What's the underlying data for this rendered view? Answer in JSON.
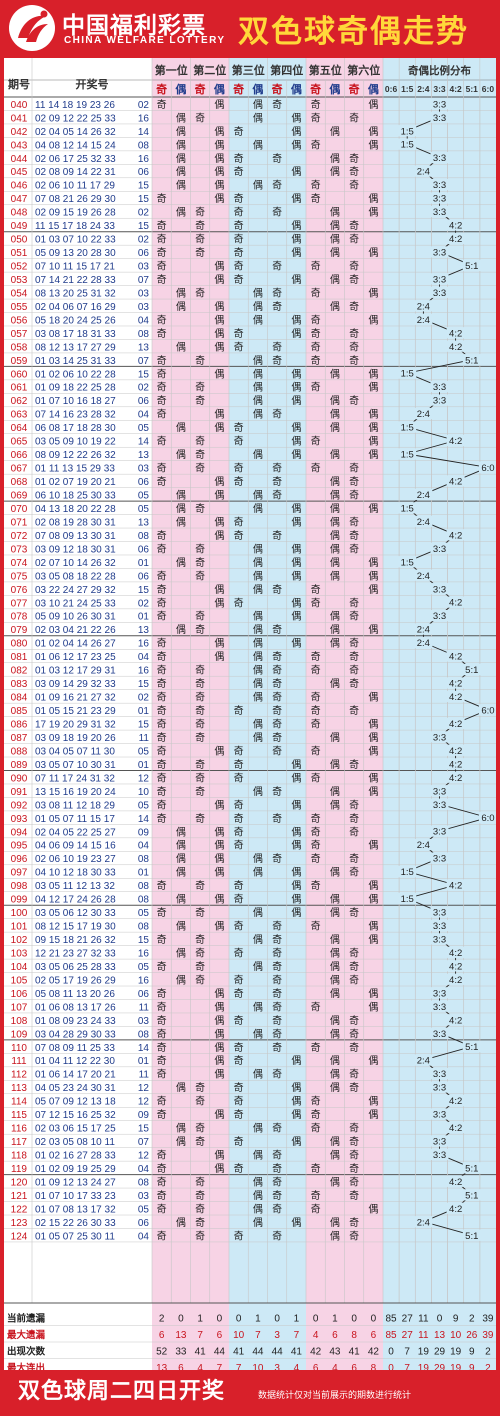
{
  "brand": {
    "name_cn": "中国福利彩票",
    "name_en": "CHINA WELFARE LOTTERY"
  },
  "title": "双色球奇偶走势",
  "headers": {
    "period": "期号",
    "numbers": "开奖号",
    "positions": [
      "第一位",
      "第二位",
      "第三位",
      "第四位",
      "第五位",
      "第六位"
    ],
    "odd": "奇",
    "even": "偶",
    "ratio_group": "奇偶比例分布",
    "ratios": [
      "0:6",
      "1:5",
      "2:4",
      "3:3",
      "4:2",
      "5:1",
      "6:0"
    ]
  },
  "rows": [
    {
      "p": "040",
      "r": "11 14 18 19 23 26",
      "b": "02"
    },
    {
      "p": "041",
      "r": "02 09 12 22 25 33",
      "b": "16"
    },
    {
      "p": "042",
      "r": "02 04 05 14 26 32",
      "b": "14"
    },
    {
      "p": "043",
      "r": "04 08 12 14 15 24",
      "b": "08"
    },
    {
      "p": "044",
      "r": "02 06 17 25 32 33",
      "b": "16"
    },
    {
      "p": "045",
      "r": "02 08 09 14 22 31",
      "b": "06"
    },
    {
      "p": "046",
      "r": "02 06 10 11 17 29",
      "b": "15"
    },
    {
      "p": "047",
      "r": "07 08 21 26 29 30",
      "b": "15"
    },
    {
      "p": "048",
      "r": "02 09 15 19 26 28",
      "b": "02"
    },
    {
      "p": "049",
      "r": "11 15 17 18 24 33",
      "b": "15"
    },
    {
      "p": "050",
      "r": "01 03 07 10 22 33",
      "b": "02"
    },
    {
      "p": "051",
      "r": "05 09 13 20 28 30",
      "b": "06"
    },
    {
      "p": "052",
      "r": "07 10 11 15 17 21",
      "b": "03"
    },
    {
      "p": "053",
      "r": "07 14 21 22 28 33",
      "b": "07"
    },
    {
      "p": "054",
      "r": "08 13 20 25 31 32",
      "b": "03"
    },
    {
      "p": "055",
      "r": "02 04 06 07 16 29",
      "b": "03"
    },
    {
      "p": "056",
      "r": "05 18 20 24 25 26",
      "b": "04"
    },
    {
      "p": "057",
      "r": "03 08 17 18 31 33",
      "b": "08"
    },
    {
      "p": "058",
      "r": "08 12 13 17 27 29",
      "b": "13"
    },
    {
      "p": "059",
      "r": "01 03 14 25 31 33",
      "b": "07"
    },
    {
      "p": "060",
      "r": "01 02 06 10 22 28",
      "b": "15"
    },
    {
      "p": "061",
      "r": "01 09 18 22 25 28",
      "b": "02"
    },
    {
      "p": "062",
      "r": "01 07 10 16 18 27",
      "b": "06"
    },
    {
      "p": "063",
      "r": "07 14 16 23 28 32",
      "b": "04"
    },
    {
      "p": "064",
      "r": "06 08 17 18 28 30",
      "b": "05"
    },
    {
      "p": "065",
      "r": "03 05 09 10 19 22",
      "b": "14"
    },
    {
      "p": "066",
      "r": "08 09 12 22 26 32",
      "b": "13"
    },
    {
      "p": "067",
      "r": "01 11 13 15 29 33",
      "b": "03"
    },
    {
      "p": "068",
      "r": "01 02 07 19 20 21",
      "b": "06"
    },
    {
      "p": "069",
      "r": "06 10 18 25 30 33",
      "b": "05"
    },
    {
      "p": "070",
      "r": "04 13 18 20 22 28",
      "b": "05"
    },
    {
      "p": "071",
      "r": "02 08 19 28 30 31",
      "b": "13"
    },
    {
      "p": "072",
      "r": "07 08 09 13 30 31",
      "b": "08"
    },
    {
      "p": "073",
      "r": "03 09 12 18 30 31",
      "b": "06"
    },
    {
      "p": "074",
      "r": "02 07 10 14 26 32",
      "b": "01"
    },
    {
      "p": "075",
      "r": "03 05 08 18 22 28",
      "b": "06"
    },
    {
      "p": "076",
      "r": "03 22 24 27 29 32",
      "b": "15"
    },
    {
      "p": "077",
      "r": "03 10 21 24 25 33",
      "b": "02"
    },
    {
      "p": "078",
      "r": "05 09 10 26 30 31",
      "b": "01"
    },
    {
      "p": "079",
      "r": "02 03 04 21 22 26",
      "b": "13"
    },
    {
      "p": "080",
      "r": "01 02 04 14 26 27",
      "b": "16"
    },
    {
      "p": "081",
      "r": "01 06 12 17 23 25",
      "b": "04"
    },
    {
      "p": "082",
      "r": "01 03 12 17 29 31",
      "b": "16"
    },
    {
      "p": "083",
      "r": "03 09 14 29 32 33",
      "b": "15"
    },
    {
      "p": "084",
      "r": "01 09 16 21 27 32",
      "b": "02"
    },
    {
      "p": "085",
      "r": "01 05 15 21 23 29",
      "b": "01"
    },
    {
      "p": "086",
      "r": "17 19 20 29 31 32",
      "b": "15"
    },
    {
      "p": "087",
      "r": "03 09 18 19 20 26",
      "b": "11"
    },
    {
      "p": "088",
      "r": "03 04 05 07 11 30",
      "b": "05"
    },
    {
      "p": "089",
      "r": "03 05 07 10 30 31",
      "b": "01"
    },
    {
      "p": "090",
      "r": "07 11 17 24 31 32",
      "b": "12"
    },
    {
      "p": "091",
      "r": "13 15 16 19 20 24",
      "b": "10"
    },
    {
      "p": "092",
      "r": "03 08 11 12 18 29",
      "b": "05"
    },
    {
      "p": "093",
      "r": "01 05 07 11 15 17",
      "b": "14"
    },
    {
      "p": "094",
      "r": "02 04 05 22 25 27",
      "b": "09"
    },
    {
      "p": "095",
      "r": "04 06 09 14 15 16",
      "b": "04"
    },
    {
      "p": "096",
      "r": "02 06 10 19 23 27",
      "b": "08"
    },
    {
      "p": "097",
      "r": "04 10 12 18 30 33",
      "b": "01"
    },
    {
      "p": "098",
      "r": "03 05 11 12 13 32",
      "b": "08"
    },
    {
      "p": "099",
      "r": "04 12 17 24 26 28",
      "b": "08"
    },
    {
      "p": "100",
      "r": "03 05 06 12 30 33",
      "b": "05"
    },
    {
      "p": "101",
      "r": "08 12 15 17 19 30",
      "b": "08"
    },
    {
      "p": "102",
      "r": "09 15 18 21 26 32",
      "b": "15"
    },
    {
      "p": "103",
      "r": "12 21 23 27 32 33",
      "b": "16"
    },
    {
      "p": "104",
      "r": "03 05 06 25 28 33",
      "b": "05"
    },
    {
      "p": "105",
      "r": "02 05 17 19 26 29",
      "b": "16"
    },
    {
      "p": "106",
      "r": "05 08 11 13 20 26",
      "b": "06"
    },
    {
      "p": "107",
      "r": "01 06 08 13 17 26",
      "b": "11"
    },
    {
      "p": "108",
      "r": "01 08 09 23 24 33",
      "b": "03"
    },
    {
      "p": "109",
      "r": "03 04 28 29 30 33",
      "b": "08"
    },
    {
      "p": "110",
      "r": "07 08 09 11 25 33",
      "b": "14"
    },
    {
      "p": "111",
      "r": "01 04 11 12 22 30",
      "b": "01"
    },
    {
      "p": "112",
      "r": "01 06 14 17 20 21",
      "b": "11"
    },
    {
      "p": "113",
      "r": "04 05 23 24 30 31",
      "b": "12"
    },
    {
      "p": "114",
      "r": "05 07 09 12 13 18",
      "b": "12"
    },
    {
      "p": "115",
      "r": "07 12 15 16 25 32",
      "b": "09"
    },
    {
      "p": "116",
      "r": "02 03 06 15 17 25",
      "b": "15"
    },
    {
      "p": "117",
      "r": "02 03 05 08 10 11",
      "b": "07"
    },
    {
      "p": "118",
      "r": "01 02 16 27 28 33",
      "b": "12"
    },
    {
      "p": "119",
      "r": "01 02 09 19 25 29",
      "b": "04"
    },
    {
      "p": "120",
      "r": "01 09 12 13 24 27",
      "b": "08"
    },
    {
      "p": "121",
      "r": "01 07 10 17 33 23",
      "b": "03"
    },
    {
      "p": "122",
      "r": "01 07 08 13 17 32",
      "b": "05"
    },
    {
      "p": "123",
      "r": "02 15 22 26 30 33",
      "b": "06"
    },
    {
      "p": "124",
      "r": "01 05 07 25 30 11",
      "b": "04"
    }
  ],
  "stats": [
    {
      "label": "当前遗漏",
      "pos": [
        2,
        0,
        1,
        0,
        0,
        1,
        0,
        1,
        0,
        1,
        0,
        0
      ],
      "ratio": [
        85,
        27,
        11,
        0,
        9,
        2,
        39
      ]
    },
    {
      "label": "最大遗漏",
      "pos": [
        6,
        13,
        7,
        6,
        10,
        7,
        3,
        7,
        4,
        6,
        8,
        6
      ],
      "ratio": [
        85,
        27,
        11,
        13,
        10,
        26,
        39
      ]
    },
    {
      "label": "出现次数",
      "pos": [
        52,
        33,
        41,
        44,
        41,
        44,
        44,
        41,
        42,
        43,
        41,
        42
      ],
      "ratio": [
        0,
        7,
        19,
        29,
        19,
        9,
        2
      ]
    },
    {
      "label": "最大连出",
      "pos": [
        13,
        6,
        4,
        7,
        7,
        10,
        3,
        4,
        6,
        4,
        6,
        8
      ],
      "ratio": [
        0,
        7,
        19,
        29,
        19,
        9,
        2
      ]
    }
  ],
  "footer": {
    "title": "双色球周二四日开奖",
    "note": "数据统计仅对当前展示的期数进行统计"
  },
  "colors": {
    "frame": "#d8202a",
    "title": "#ffd83a",
    "pink": "#f7d3e5",
    "blue": "#cde9f6",
    "period": "#c8141e",
    "numbers": "#203c8c",
    "blue_ball": "#203c8c",
    "grid": "#c7c7c7"
  }
}
